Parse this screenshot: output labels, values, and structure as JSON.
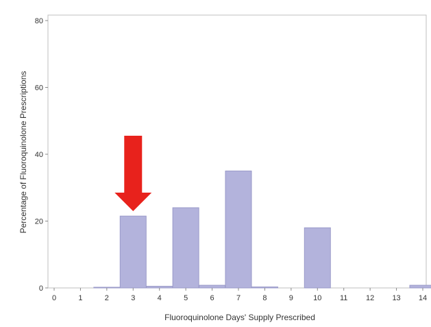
{
  "chart_data": {
    "type": "bar",
    "title": "",
    "xlabel": "Fluoroquinolone Days' Supply Prescribed",
    "ylabel": "Percentage of Fluoroquinolone Prescriptions",
    "xlim": [
      0,
      14
    ],
    "ylim": [
      0,
      80
    ],
    "x_ticks": [
      "0",
      "1",
      "2",
      "3",
      "4",
      "5",
      "6",
      "7",
      "8",
      "9",
      "10",
      "11",
      "12",
      "13",
      "14"
    ],
    "y_ticks": [
      "0",
      "20",
      "40",
      "60",
      "80"
    ],
    "categories": [
      2,
      3,
      4,
      5,
      6,
      7,
      8,
      10,
      14
    ],
    "values": [
      0.2,
      21.5,
      0.5,
      24,
      0.8,
      35,
      0.3,
      18,
      0.8
    ],
    "bar_color": "#b3b3dc",
    "bar_edge_color": "#9a9ac9",
    "grid": false,
    "annotation": {
      "type": "arrow",
      "points_to_x": 3,
      "color": "#e8221c"
    }
  }
}
